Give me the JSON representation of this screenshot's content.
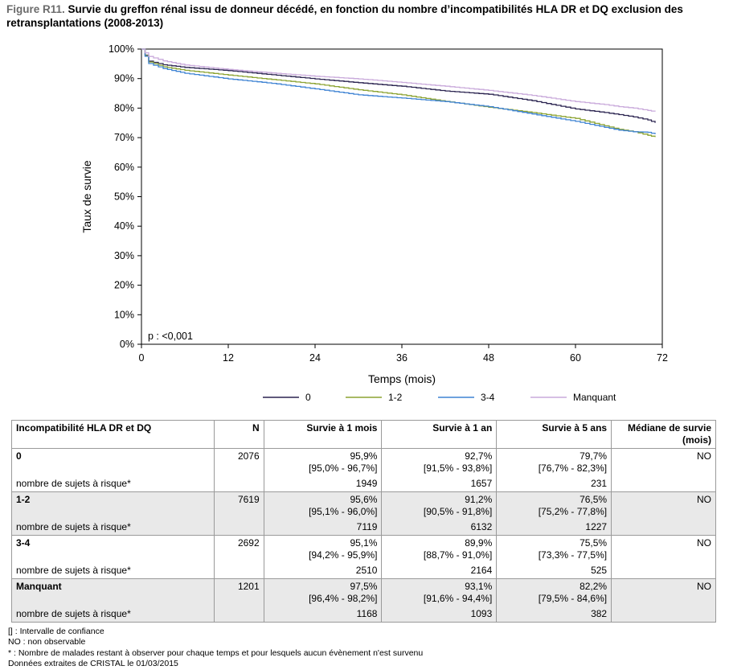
{
  "figure": {
    "label": "Figure R11.",
    "title": "Survie du greffon rénal issu de donneur décédé, en fonction du nombre d’incompatibilités HLA DR et DQ exclusion des retransplantations (2008-2013)"
  },
  "chart_data": {
    "type": "line",
    "xlabel": "Temps (mois)",
    "ylabel": "Taux de survie",
    "xlim": [
      0,
      72
    ],
    "ylim": [
      0,
      100
    ],
    "x_ticks": [
      "0",
      "12",
      "24",
      "36",
      "48",
      "60",
      "72"
    ],
    "y_ticks": [
      "0%",
      "10%",
      "20%",
      "30%",
      "40%",
      "50%",
      "60%",
      "70%",
      "80%",
      "90%",
      "100%"
    ],
    "annotation": "p : <0,001",
    "legend_position": "bottom",
    "series": [
      {
        "name": "0",
        "color": "#2b2450",
        "x": [
          0,
          1,
          3,
          6,
          12,
          18,
          24,
          30,
          36,
          42,
          48,
          54,
          60,
          64,
          66,
          68,
          70,
          71
        ],
        "y": [
          100,
          95.9,
          94.7,
          93.8,
          92.7,
          91.3,
          89.9,
          88.6,
          87.4,
          85.8,
          84.7,
          82.5,
          79.7,
          78.5,
          77.8,
          77.0,
          76.0,
          75.0
        ]
      },
      {
        "name": "1-2",
        "color": "#8ca332",
        "x": [
          0,
          1,
          3,
          6,
          12,
          18,
          24,
          30,
          36,
          42,
          48,
          54,
          60,
          64,
          66,
          68,
          70,
          71
        ],
        "y": [
          100,
          95.6,
          94.0,
          92.8,
          91.2,
          89.7,
          88.2,
          86.2,
          84.5,
          82.3,
          80.3,
          78.5,
          76.5,
          74.0,
          72.8,
          72.0,
          70.8,
          70.2
        ]
      },
      {
        "name": "3-4",
        "color": "#3f83d3",
        "x": [
          0,
          1,
          3,
          6,
          12,
          18,
          24,
          30,
          36,
          42,
          48,
          54,
          60,
          64,
          66,
          68,
          70,
          71
        ],
        "y": [
          100,
          95.1,
          93.4,
          91.8,
          89.9,
          88.4,
          86.5,
          84.5,
          83.4,
          82.2,
          80.5,
          78.0,
          75.5,
          73.5,
          72.5,
          72.0,
          71.8,
          71.2
        ]
      },
      {
        "name": "Manquant",
        "color": "#c9aadb",
        "x": [
          0,
          1,
          3,
          6,
          12,
          18,
          24,
          30,
          36,
          42,
          48,
          54,
          60,
          64,
          66,
          68,
          70,
          71
        ],
        "y": [
          100,
          97.5,
          96.0,
          94.6,
          93.1,
          91.9,
          90.8,
          89.9,
          88.7,
          87.4,
          86.0,
          84.3,
          82.2,
          81.2,
          80.5,
          80.0,
          79.2,
          78.8
        ]
      }
    ]
  },
  "table": {
    "headers": [
      "Incompatibilité HLA DR et DQ",
      "N",
      "Survie à 1 mois",
      "Survie à 1 an",
      "Survie à 5 ans",
      "Médiane de survie (mois)"
    ],
    "groups": [
      {
        "name": "0",
        "n": "2076",
        "s1m": "95,9%",
        "s1m_ci": "[95,0% - 96,7%]",
        "s1a": "92,7%",
        "s1a_ci": "[91,5% - 93,8%]",
        "s5a": "79,7%",
        "s5a_ci": "[76,7% - 82,3%]",
        "median": "NO",
        "risk_label": "nombre de sujets à risque*",
        "risk_1m": "1949",
        "risk_1a": "1657",
        "risk_5a": "231"
      },
      {
        "name": "1-2",
        "n": "7619",
        "s1m": "95,6%",
        "s1m_ci": "[95,1% - 96,0%]",
        "s1a": "91,2%",
        "s1a_ci": "[90,5% - 91,8%]",
        "s5a": "76,5%",
        "s5a_ci": "[75,2% - 77,8%]",
        "median": "NO",
        "risk_label": "nombre de sujets à risque*",
        "risk_1m": "7119",
        "risk_1a": "6132",
        "risk_5a": "1227"
      },
      {
        "name": "3-4",
        "n": "2692",
        "s1m": "95,1%",
        "s1m_ci": "[94,2% - 95,9%]",
        "s1a": "89,9%",
        "s1a_ci": "[88,7% - 91,0%]",
        "s5a": "75,5%",
        "s5a_ci": "[73,3% - 77,5%]",
        "median": "NO",
        "risk_label": "nombre de sujets à risque*",
        "risk_1m": "2510",
        "risk_1a": "2164",
        "risk_5a": "525"
      },
      {
        "name": "Manquant",
        "n": "1201",
        "s1m": "97,5%",
        "s1m_ci": "[96,4% - 98,2%]",
        "s1a": "93,1%",
        "s1a_ci": "[91,6% - 94,4%]",
        "s5a": "82,2%",
        "s5a_ci": "[79,5% - 84,6%]",
        "median": "NO",
        "risk_label": "nombre de sujets à risque*",
        "risk_1m": "1168",
        "risk_1a": "1093",
        "risk_5a": "382"
      }
    ]
  },
  "notes": [
    "[] : Intervalle de confiance",
    "NO : non observable",
    "* : Nombre de malades restant à observer pour chaque temps et pour lesquels aucun évènement n'est survenu",
    "Données extraites de CRISTAL le 01/03/2015"
  ]
}
